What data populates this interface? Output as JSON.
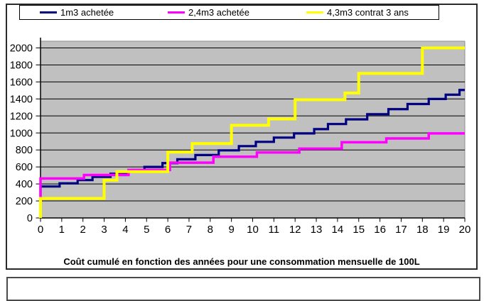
{
  "legend": {
    "items": [
      {
        "label": "1m3 achetée",
        "color": "#000080"
      },
      {
        "label": "2,4m3 achetée",
        "color": "#FF00FF"
      },
      {
        "label": "4,3m3 contrat 3 ans",
        "color": "#FFFF00"
      }
    ]
  },
  "chart_data": {
    "type": "line",
    "subtype": "step",
    "title": "Coût cumulé en fonction des années pour une consommation mensuelle de 100L",
    "xlabel": "",
    "ylabel": "",
    "plot_background": "#C0C0C0",
    "gridline_color": "#000000",
    "grid": true,
    "legend_position": "top",
    "x_axis": {
      "min": 0,
      "max": 20,
      "tick_step": 1,
      "ticks": [
        0,
        1,
        2,
        3,
        4,
        5,
        6,
        7,
        8,
        9,
        10,
        11,
        12,
        13,
        14,
        15,
        16,
        17,
        18,
        19,
        20
      ]
    },
    "y_axis": {
      "min": 0,
      "max": 2000,
      "tick_step": 200,
      "ticks": [
        0,
        200,
        400,
        600,
        800,
        1000,
        1200,
        1400,
        1600,
        1800,
        2000
      ]
    },
    "series": [
      {
        "name": "1m3 achetée",
        "color": "#000080",
        "line_width": 3.2,
        "start_value": 0,
        "points": [
          [
            0,
            370
          ],
          [
            0.9,
            407
          ],
          [
            1.75,
            445
          ],
          [
            2.45,
            483
          ],
          [
            3.3,
            520
          ],
          [
            4.15,
            560
          ],
          [
            4.9,
            600
          ],
          [
            5.75,
            645
          ],
          [
            6.45,
            690
          ],
          [
            7.3,
            740
          ],
          [
            8.4,
            795
          ],
          [
            9.35,
            845
          ],
          [
            10.15,
            895
          ],
          [
            11,
            945
          ],
          [
            11.95,
            995
          ],
          [
            12.9,
            1045
          ],
          [
            13.55,
            1105
          ],
          [
            14.4,
            1160
          ],
          [
            15.4,
            1220
          ],
          [
            16.4,
            1280
          ],
          [
            17.3,
            1340
          ],
          [
            18.3,
            1400
          ],
          [
            19.1,
            1450
          ],
          [
            19.75,
            1505
          ]
        ]
      },
      {
        "name": "2,4m3 achetée",
        "color": "#FF00FF",
        "line_width": 3.5,
        "start_value": 0,
        "points": [
          [
            0,
            465
          ],
          [
            2.05,
            505
          ],
          [
            4.15,
            565
          ],
          [
            6.1,
            650
          ],
          [
            8.15,
            720
          ],
          [
            10.2,
            770
          ],
          [
            12.2,
            815
          ],
          [
            14.2,
            890
          ],
          [
            16.3,
            935
          ],
          [
            18.3,
            995
          ]
        ]
      },
      {
        "name": "4,3m3 contrat 3 ans",
        "color": "#FFFF00",
        "line_width": 4,
        "start_value": 0,
        "points": [
          [
            0,
            230
          ],
          [
            3,
            445
          ],
          [
            3.6,
            545
          ],
          [
            6,
            775
          ],
          [
            7.15,
            875
          ],
          [
            9,
            1090
          ],
          [
            10.75,
            1165
          ],
          [
            12,
            1390
          ],
          [
            14.35,
            1470
          ],
          [
            15,
            1700
          ],
          [
            18,
            2000
          ]
        ]
      }
    ]
  }
}
